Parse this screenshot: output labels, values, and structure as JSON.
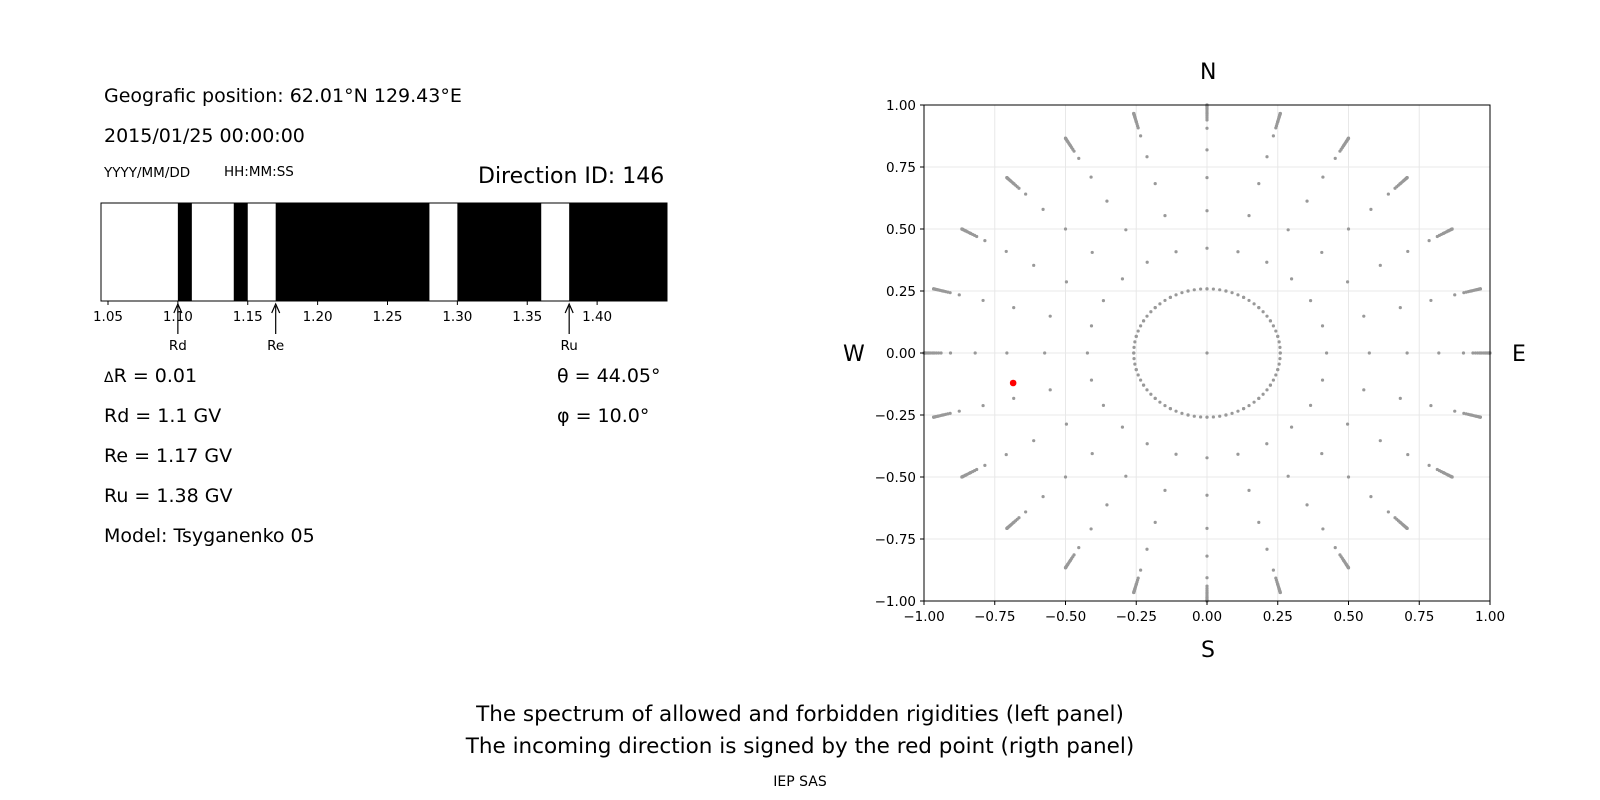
{
  "left_panel": {
    "position_label": "Geografic position: 62.01°N 129.43°E",
    "datetime": "2015/01/25 00:00:00",
    "date_format": "YYYY/MM/DD",
    "time_format": "HH:MM:SS",
    "direction_id": "Direction ID: 146",
    "delta_r": "R = 0.01",
    "delta_symbol": "Δ",
    "rd": "Rd = 1.1 GV",
    "re": "Re = 1.17 GV",
    "ru": "Ru = 1.38 GV",
    "model": "Model: Tsyganenko 05",
    "theta": "θ = 44.05°",
    "phi": "φ = 10.0°"
  },
  "right_panel": {
    "north": "N",
    "south": "S",
    "west": "W",
    "east": "E"
  },
  "caption_line1": "The spectrum of allowed and forbidden rigidities (left panel)",
  "caption_line2": "The incoming direction is signed by the red point (rigth panel)",
  "credit": "IEP SAS",
  "chart_data": [
    {
      "type": "bar",
      "description_x": "rigidity (GV)",
      "xlim": [
        1.045,
        1.45
      ],
      "xticks": [
        1.05,
        1.1,
        1.15,
        1.2,
        1.25,
        1.3,
        1.35,
        1.4
      ],
      "xtick_labels": [
        "1.05",
        "1.10",
        "1.15",
        "1.20",
        "1.25",
        "1.30",
        "1.35",
        "1.40"
      ],
      "forbidden_intervals": [
        [
          1.1,
          1.11
        ],
        [
          1.14,
          1.15
        ],
        [
          1.17,
          1.28
        ],
        [
          1.3,
          1.36
        ],
        [
          1.38,
          1.45
        ]
      ],
      "markers": [
        {
          "label": "Rd",
          "value": 1.1
        },
        {
          "label": "Re",
          "value": 1.17
        },
        {
          "label": "Ru",
          "value": 1.38
        }
      ],
      "colors": {
        "forbidden": "#000000",
        "allowed": "#ffffff"
      }
    },
    {
      "type": "scatter",
      "xlim": [
        -1.0,
        1.0
      ],
      "ylim": [
        -1.0,
        1.0
      ],
      "xticks": [
        -1.0,
        -0.75,
        -0.5,
        -0.25,
        0.0,
        0.25,
        0.5,
        0.75,
        1.0
      ],
      "yticks": [
        -1.0,
        -0.75,
        -0.5,
        -0.25,
        0.0,
        0.25,
        0.5,
        0.75,
        1.0
      ],
      "xtick_labels": [
        "−1.00",
        "−0.75",
        "−0.50",
        "−0.25",
        "0.00",
        "0.25",
        "0.50",
        "0.75",
        "1.00"
      ],
      "ytick_labels": [
        "−1.00",
        "−0.75",
        "−0.50",
        "−0.25",
        "0.00",
        "0.25",
        "0.50",
        "0.75",
        "1.00"
      ],
      "grid": true,
      "grid_pattern": {
        "zenith_angles_deg": [
          0,
          15,
          25,
          35,
          45,
          55,
          65,
          75,
          80,
          85,
          90
        ],
        "azimuth_step_deg": 15,
        "fine_outer_zenith_deg": [
          70,
          72.5,
          75,
          77.5,
          80,
          82.5,
          85,
          87.5,
          90
        ]
      },
      "highlight_point": {
        "x": -0.685,
        "y": -0.121
      },
      "colors": {
        "grid_points": "#999999",
        "highlight": "#ff0000"
      }
    }
  ]
}
